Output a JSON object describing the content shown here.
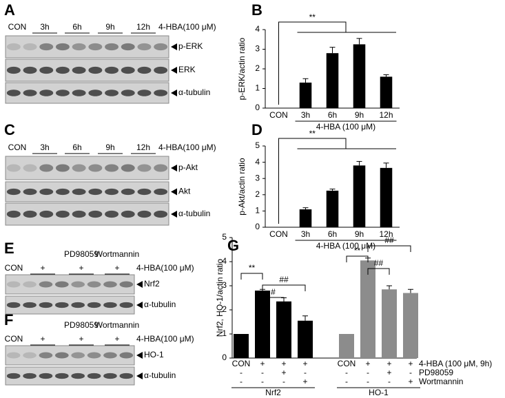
{
  "blots": [
    {
      "label": "A",
      "lanes": [
        "CON",
        "3h",
        "6h",
        "9h",
        "12h"
      ],
      "treatment": "4-HBA(100 μM)",
      "rows": [
        "p-ERK",
        "ERK",
        "α-tubulin"
      ]
    },
    {
      "label": "C",
      "lanes": [
        "CON",
        "3h",
        "6h",
        "9h",
        "12h"
      ],
      "treatment": "4-HBA(100 μM)",
      "rows": [
        "p-Akt",
        "Akt",
        "α-tubulin"
      ]
    },
    {
      "label": "E",
      "inhibitors": [
        "PD98059",
        "Wortmannin"
      ],
      "lanes": [
        "CON",
        "+",
        "+",
        "+"
      ],
      "treatment": "4-HBA(100 μM)",
      "rows": [
        "Nrf2",
        "α-tubulin"
      ]
    },
    {
      "label": "F",
      "inhibitors": [
        "PD98059",
        "Wortmannin"
      ],
      "lanes": [
        "CON",
        "+",
        "+",
        "+"
      ],
      "treatment": "4-HBA(100 μM)",
      "rows": [
        "HO-1",
        "α-tubulin"
      ]
    }
  ],
  "chart_data": [
    {
      "type": "bar",
      "label": "B",
      "y_label": "p-ERK/actin ratio",
      "categories": [
        "CON",
        "3h",
        "6h",
        "9h",
        "12h"
      ],
      "values": [
        null,
        1.3,
        2.8,
        3.25,
        1.6
      ],
      "errors": [
        null,
        0.2,
        0.3,
        0.3,
        0.1
      ],
      "color": "#000000",
      "treatment": "4-HBA (100 μM)",
      "significance": [
        "**"
      ],
      "ylim": [
        0,
        4
      ],
      "yticks": [
        0,
        1,
        2,
        3,
        4
      ]
    },
    {
      "type": "bar",
      "label": "D",
      "y_label": "p-Akt/actin ratio",
      "categories": [
        "CON",
        "3h",
        "6h",
        "9h",
        "12h"
      ],
      "values": [
        null,
        1.1,
        2.25,
        3.8,
        3.65
      ],
      "errors": [
        null,
        0.1,
        0.1,
        0.25,
        0.3
      ],
      "color": "#000000",
      "treatment": "4-HBA (100 μM)",
      "significance": [
        "**"
      ],
      "ylim": [
        0,
        5
      ],
      "yticks": [
        0,
        1,
        2,
        3,
        4,
        5
      ]
    },
    {
      "type": "grouped_bar",
      "label": "G",
      "y_label": "Nrf2, HO-1/actin ratio",
      "series": [
        {
          "name": "Nrf2",
          "color": "#000000",
          "values": [
            1.0,
            2.8,
            2.35,
            1.55
          ],
          "errors": [
            0,
            0.05,
            0.15,
            0.2
          ],
          "significance": [
            "**",
            "#",
            "##"
          ]
        },
        {
          "name": "HO-1",
          "color": "#8c8c8c",
          "values": [
            1.0,
            4.05,
            2.85,
            2.7
          ],
          "errors": [
            0,
            0.1,
            0.15,
            0.15
          ],
          "significance": [
            "**",
            "##",
            "##"
          ]
        }
      ],
      "rows": [
        {
          "label": "4-HBA (100 μM, 9h)",
          "marks": [
            "CON",
            "+",
            "+",
            "+"
          ]
        },
        {
          "label": "PD98059",
          "marks": [
            "-",
            "-",
            "+",
            "-"
          ]
        },
        {
          "label": "Wortmannin",
          "marks": [
            "-",
            "-",
            "-",
            "+"
          ]
        }
      ],
      "ylim": [
        0,
        5
      ],
      "yticks": [
        0,
        1,
        2,
        3,
        4,
        5
      ]
    }
  ]
}
